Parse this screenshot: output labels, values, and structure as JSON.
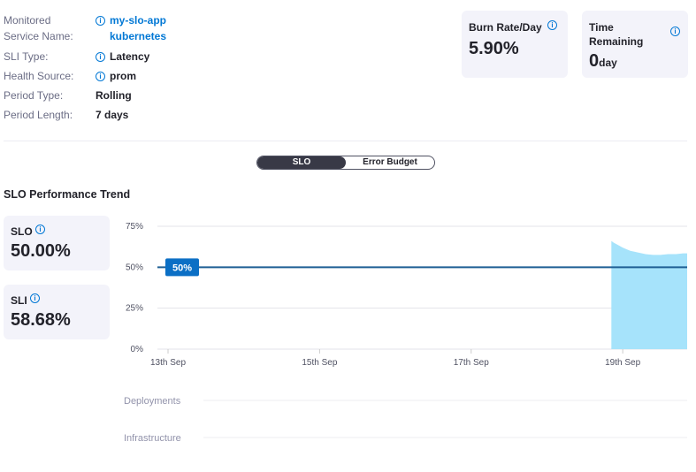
{
  "details": [
    {
      "label": "Monitored Service Name:",
      "values": [
        "my-slo-app",
        "kubernetes"
      ],
      "info": true,
      "link": true
    },
    {
      "label": "SLI Type:",
      "values": [
        "Latency"
      ],
      "info": true
    },
    {
      "label": "Health Source:",
      "values": [
        "prom"
      ],
      "info": true
    },
    {
      "label": "Period Type:",
      "values": [
        "Rolling"
      ]
    },
    {
      "label": "Period Length:",
      "values": [
        "7 days"
      ]
    }
  ],
  "burn_rate": {
    "label": "Burn Rate/Day",
    "value": "5.90%"
  },
  "time_remaining": {
    "label": "Time Remaining",
    "value": "0",
    "unit": "day"
  },
  "toggle": [
    "SLO",
    "Error Budget"
  ],
  "section_title": "SLO Performance Trend",
  "slo_card": {
    "label": "SLO",
    "value": "50.00%"
  },
  "sli_card": {
    "label": "SLI",
    "value": "58.68%"
  },
  "chart_data": {
    "type": "area",
    "color": "#a6e3fb",
    "x": [
      18.85,
      18.88,
      18.92,
      18.96,
      19.0,
      19.05,
      19.1,
      19.2,
      19.3,
      19.4,
      19.5,
      19.6,
      19.7,
      19.8,
      19.85
    ],
    "values": [
      66,
      65,
      64,
      63,
      62,
      61,
      60,
      59,
      58,
      57.5,
      57.5,
      58,
      58,
      58.5,
      58.5
    ],
    "xlim": [
      12.86,
      19.85
    ],
    "xticks": [
      {
        "value": 13,
        "label": "13th Sep"
      },
      {
        "value": 15,
        "label": "15th Sep"
      },
      {
        "value": 17,
        "label": "17th Sep"
      },
      {
        "value": 19,
        "label": "19th Sep"
      }
    ],
    "ylim": [
      0,
      75
    ],
    "yticks": [
      {
        "value": 0,
        "label": "0%"
      },
      {
        "value": 25,
        "label": "25%"
      },
      {
        "value": 50,
        "label": "50%"
      },
      {
        "value": 75,
        "label": "75%"
      }
    ],
    "threshold": {
      "value": 50,
      "label": "50%",
      "color": "#1f5f94"
    },
    "grid": true,
    "lanes": [
      "Deployments",
      "Infrastructure"
    ]
  }
}
